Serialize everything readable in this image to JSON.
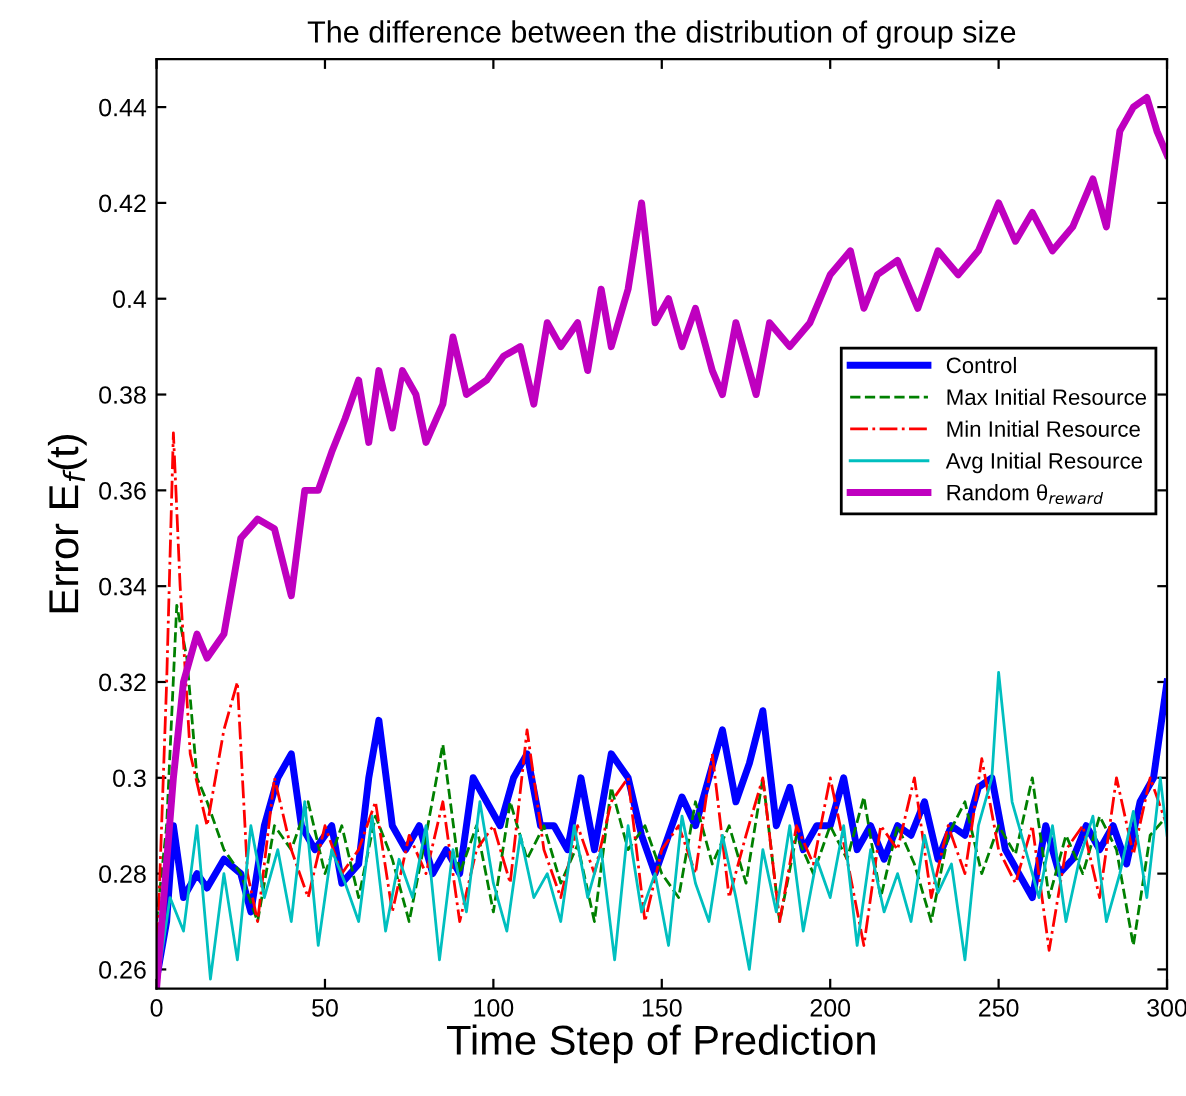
{
  "chart_data": {
    "type": "line",
    "title": "The difference between the distribution of group size",
    "xlabel": "Time Step of Prediction",
    "ylabel": "Error E$_{f}$(t)",
    "xlim": [
      0,
      300
    ],
    "ylim": [
      0.256,
      0.45
    ],
    "xticks": [
      0,
      50,
      100,
      150,
      200,
      250,
      300
    ],
    "yticks": [
      0.26,
      0.28,
      0.3,
      0.32,
      0.34,
      0.36,
      0.38,
      0.4,
      0.42,
      0.44
    ],
    "grid": false,
    "legend": "right",
    "marker": "none",
    "series": [
      {
        "name": "Control",
        "color": "#0000ff",
        "line_style": "solid",
        "x": [
          0,
          3,
          5,
          8,
          12,
          15,
          20,
          25,
          28,
          32,
          36,
          40,
          43,
          47,
          52,
          55,
          60,
          63,
          66,
          70,
          74,
          78,
          82,
          86,
          90,
          94,
          98,
          102,
          106,
          110,
          114,
          118,
          122,
          126,
          130,
          135,
          140,
          144,
          148,
          152,
          156,
          160,
          164,
          168,
          172,
          176,
          180,
          184,
          188,
          192,
          196,
          200,
          204,
          208,
          212,
          216,
          220,
          224,
          228,
          232,
          236,
          240,
          244,
          248,
          252,
          256,
          260,
          264,
          268,
          272,
          276,
          280,
          284,
          288,
          292,
          296,
          300
        ],
        "values": [
          0.258,
          0.27,
          0.29,
          0.275,
          0.28,
          0.277,
          0.283,
          0.28,
          0.272,
          0.29,
          0.3,
          0.305,
          0.29,
          0.285,
          0.29,
          0.278,
          0.282,
          0.3,
          0.312,
          0.29,
          0.285,
          0.29,
          0.28,
          0.285,
          0.28,
          0.3,
          0.295,
          0.29,
          0.3,
          0.305,
          0.29,
          0.29,
          0.285,
          0.3,
          0.285,
          0.305,
          0.3,
          0.288,
          0.28,
          0.288,
          0.296,
          0.29,
          0.3,
          0.31,
          0.295,
          0.303,
          0.314,
          0.29,
          0.298,
          0.285,
          0.29,
          0.29,
          0.3,
          0.285,
          0.29,
          0.283,
          0.29,
          0.288,
          0.295,
          0.283,
          0.29,
          0.288,
          0.298,
          0.3,
          0.285,
          0.28,
          0.275,
          0.29,
          0.28,
          0.283,
          0.29,
          0.285,
          0.29,
          0.282,
          0.295,
          0.3,
          0.32
        ]
      },
      {
        "name": "Max Initial Resource",
        "color": "#008000",
        "line_style": "dashed",
        "x": [
          0,
          3,
          6,
          9,
          12,
          15,
          20,
          25,
          30,
          35,
          40,
          45,
          50,
          55,
          60,
          65,
          70,
          75,
          80,
          85,
          90,
          95,
          100,
          105,
          110,
          115,
          120,
          125,
          130,
          135,
          140,
          145,
          150,
          155,
          160,
          165,
          170,
          175,
          180,
          185,
          190,
          195,
          200,
          205,
          210,
          215,
          220,
          225,
          230,
          235,
          240,
          245,
          250,
          255,
          260,
          265,
          270,
          275,
          280,
          285,
          290,
          295,
          300
        ],
        "values": [
          0.27,
          0.29,
          0.336,
          0.325,
          0.3,
          0.295,
          0.285,
          0.28,
          0.27,
          0.29,
          0.285,
          0.295,
          0.28,
          0.29,
          0.275,
          0.292,
          0.283,
          0.27,
          0.288,
          0.307,
          0.28,
          0.29,
          0.272,
          0.295,
          0.283,
          0.29,
          0.278,
          0.286,
          0.27,
          0.298,
          0.285,
          0.29,
          0.28,
          0.275,
          0.295,
          0.282,
          0.29,
          0.278,
          0.3,
          0.27,
          0.288,
          0.28,
          0.29,
          0.283,
          0.296,
          0.275,
          0.29,
          0.282,
          0.27,
          0.288,
          0.295,
          0.28,
          0.29,
          0.284,
          0.3,
          0.275,
          0.288,
          0.28,
          0.292,
          0.285,
          0.265,
          0.288,
          0.292
        ]
      },
      {
        "name": "Min Initial Resource",
        "color": "#ff0000",
        "line_style": "dashdot",
        "x": [
          0,
          3,
          5,
          7,
          10,
          15,
          20,
          24,
          27,
          30,
          35,
          40,
          45,
          50,
          55,
          60,
          65,
          70,
          75,
          80,
          85,
          90,
          95,
          100,
          105,
          110,
          115,
          120,
          125,
          130,
          135,
          140,
          145,
          150,
          155,
          160,
          165,
          170,
          175,
          180,
          185,
          190,
          195,
          200,
          205,
          210,
          215,
          220,
          225,
          230,
          235,
          240,
          245,
          250,
          255,
          260,
          265,
          270,
          275,
          280,
          285,
          290,
          295,
          300
        ],
        "values": [
          0.26,
          0.32,
          0.372,
          0.34,
          0.305,
          0.29,
          0.31,
          0.32,
          0.28,
          0.27,
          0.3,
          0.285,
          0.275,
          0.29,
          0.28,
          0.285,
          0.295,
          0.272,
          0.288,
          0.28,
          0.295,
          0.27,
          0.285,
          0.29,
          0.278,
          0.31,
          0.285,
          0.275,
          0.29,
          0.28,
          0.295,
          0.3,
          0.27,
          0.285,
          0.29,
          0.28,
          0.305,
          0.275,
          0.288,
          0.3,
          0.27,
          0.29,
          0.282,
          0.3,
          0.283,
          0.265,
          0.29,
          0.285,
          0.3,
          0.275,
          0.29,
          0.28,
          0.304,
          0.285,
          0.278,
          0.29,
          0.264,
          0.285,
          0.29,
          0.275,
          0.3,
          0.284,
          0.3,
          0.29
        ]
      },
      {
        "name": "Avg Initial Resource",
        "color": "#00bfbf",
        "line_style": "solid",
        "x": [
          0,
          4,
          8,
          12,
          16,
          20,
          24,
          28,
          32,
          36,
          40,
          44,
          48,
          52,
          56,
          60,
          64,
          68,
          72,
          76,
          80,
          84,
          88,
          92,
          96,
          100,
          104,
          108,
          112,
          116,
          120,
          124,
          128,
          132,
          136,
          140,
          144,
          148,
          152,
          156,
          160,
          164,
          168,
          172,
          176,
          180,
          184,
          188,
          192,
          196,
          200,
          204,
          208,
          212,
          216,
          220,
          224,
          228,
          232,
          236,
          240,
          244,
          248,
          250,
          254,
          258,
          262,
          266,
          270,
          274,
          278,
          282,
          286,
          290,
          294,
          298,
          300
        ],
        "values": [
          0.256,
          0.275,
          0.268,
          0.29,
          0.258,
          0.28,
          0.262,
          0.29,
          0.275,
          0.285,
          0.27,
          0.295,
          0.265,
          0.285,
          0.278,
          0.27,
          0.292,
          0.268,
          0.283,
          0.275,
          0.29,
          0.262,
          0.285,
          0.272,
          0.295,
          0.278,
          0.268,
          0.288,
          0.275,
          0.28,
          0.27,
          0.29,
          0.275,
          0.285,
          0.262,
          0.29,
          0.272,
          0.28,
          0.265,
          0.292,
          0.278,
          0.27,
          0.288,
          0.275,
          0.26,
          0.285,
          0.272,
          0.29,
          0.268,
          0.283,
          0.275,
          0.29,
          0.265,
          0.285,
          0.272,
          0.28,
          0.27,
          0.288,
          0.276,
          0.282,
          0.262,
          0.29,
          0.3,
          0.322,
          0.295,
          0.285,
          0.275,
          0.29,
          0.27,
          0.283,
          0.292,
          0.27,
          0.28,
          0.293,
          0.275,
          0.3,
          0.288
        ]
      },
      {
        "name": "Random θ$_{reward}$",
        "color": "#bf00bf",
        "line_style": "solid",
        "x": [
          0,
          5,
          8,
          12,
          15,
          20,
          25,
          30,
          35,
          40,
          44,
          48,
          52,
          56,
          60,
          63,
          66,
          70,
          73,
          77,
          80,
          85,
          88,
          92,
          98,
          103,
          108,
          112,
          116,
          120,
          125,
          128,
          132,
          135,
          140,
          144,
          148,
          152,
          156,
          160,
          165,
          168,
          172,
          178,
          182,
          188,
          194,
          200,
          206,
          210,
          214,
          220,
          226,
          232,
          238,
          244,
          250,
          255,
          260,
          266,
          272,
          278,
          282,
          286,
          290,
          294,
          297,
          300
        ],
        "values": [
          0.256,
          0.3,
          0.32,
          0.33,
          0.325,
          0.33,
          0.35,
          0.354,
          0.352,
          0.338,
          0.36,
          0.36,
          0.368,
          0.375,
          0.383,
          0.37,
          0.385,
          0.373,
          0.385,
          0.38,
          0.37,
          0.378,
          0.392,
          0.38,
          0.383,
          0.388,
          0.39,
          0.378,
          0.395,
          0.39,
          0.395,
          0.385,
          0.402,
          0.39,
          0.402,
          0.42,
          0.395,
          0.4,
          0.39,
          0.398,
          0.385,
          0.38,
          0.395,
          0.38,
          0.395,
          0.39,
          0.395,
          0.405,
          0.41,
          0.398,
          0.405,
          0.408,
          0.398,
          0.41,
          0.405,
          0.41,
          0.42,
          0.412,
          0.418,
          0.41,
          0.415,
          0.425,
          0.415,
          0.435,
          0.44,
          0.442,
          0.435,
          0.43
        ]
      }
    ]
  }
}
